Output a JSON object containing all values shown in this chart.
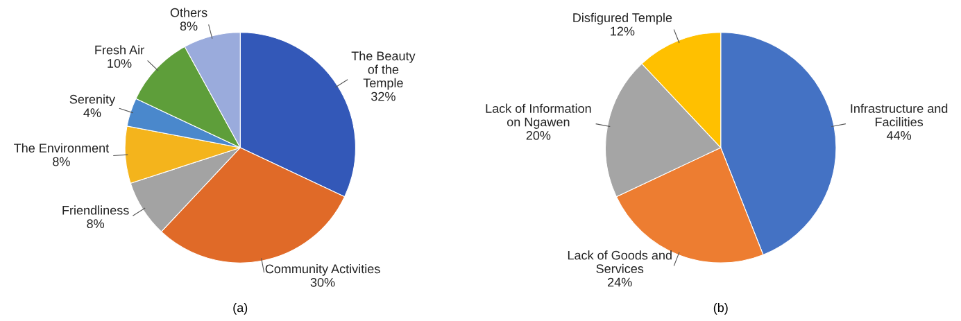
{
  "chart_data": [
    {
      "type": "pie",
      "categories": [
        "The Beauty\nof the\nTemple",
        "Community Activities",
        "Friendliness",
        "The Environment",
        "Serenity",
        "Fresh Air",
        "Others"
      ],
      "values": [
        32,
        30,
        8,
        8,
        4,
        10,
        8
      ],
      "value_labels": [
        "32%",
        "30%",
        "8%",
        "8%",
        "4%",
        "10%",
        "8%"
      ],
      "colors": [
        "#3358b8",
        "#e06a28",
        "#a3a3a3",
        "#f4b41c",
        "#4a88cc",
        "#5e9e3a",
        "#9aabdc"
      ],
      "annotations": [
        "(a)"
      ]
    },
    {
      "type": "pie",
      "categories": [
        "Infrastructure and\nFacilities",
        "Lack of Goods and\nServices",
        "Lack of Information\non Ngawen",
        "Disfigured Temple"
      ],
      "values": [
        44,
        24,
        20,
        12
      ],
      "value_labels": [
        "44%",
        "24%",
        "20%",
        "12%"
      ],
      "colors": [
        "#4472c4",
        "#ed7d31",
        "#a5a5a5",
        "#ffc000"
      ],
      "annotations": [
        "(b)"
      ]
    }
  ]
}
